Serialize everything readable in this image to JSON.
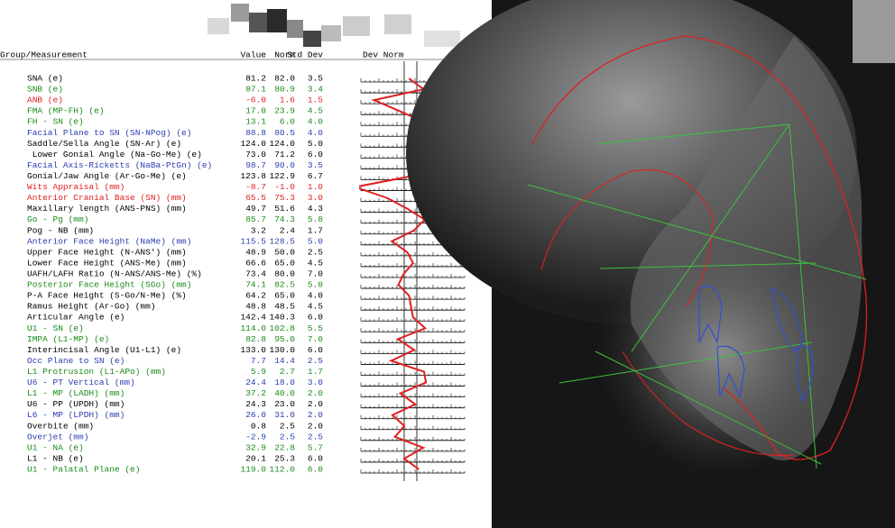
{
  "header": {
    "columns": [
      "Group/Measurement",
      "Value",
      "Norm",
      "Std Dev",
      "Dev Norm"
    ]
  },
  "table": {
    "rows": [
      {
        "name": "SNA (e)",
        "value": "81.2",
        "norm": "82.0",
        "std": "3.5",
        "color": "#000000"
      },
      {
        "name": "SNB (e)",
        "value": "87.1",
        "norm": "80.9",
        "std": "3.4",
        "color": "#1a8a1a"
      },
      {
        "name": "ANB (e)",
        "value": "-6.0",
        "norm": "1.6",
        "std": "1.5",
        "color": "#e02020"
      },
      {
        "name": "FMA (MP-FH) (e)",
        "value": "17.0",
        "norm": "23.9",
        "std": "4.5",
        "color": "#1a8a1a"
      },
      {
        "name": "FH - SN (e)",
        "value": "13.1",
        "norm": "6.0",
        "std": "4.0",
        "color": "#1a8a1a"
      },
      {
        "name": "Facial Plane to SN (SN-NPog) (e)",
        "value": "88.8",
        "norm": "80.5",
        "std": "4.0",
        "color": "#2a3db0"
      },
      {
        "name": "Saddle/Sella Angle (SN-Ar) (e)",
        "value": "124.0",
        "norm": "124.0",
        "std": "5.0",
        "color": "#000000"
      },
      {
        "name": " Lower Gonial Angle (Na-Go-Me) (e)",
        "value": "73.0",
        "norm": "71.2",
        "std": "6.0",
        "color": "#000000"
      },
      {
        "name": "Facial Axis-Ricketts (NaBa-PtGn) (e)",
        "value": "98.7",
        "norm": "90.0",
        "std": "3.5",
        "color": "#2a3db0"
      },
      {
        "name": "Gonial/Jaw Angle (Ar-Go-Me) (e)",
        "value": "123.8",
        "norm": "122.9",
        "std": "6.7",
        "color": "#000000"
      },
      {
        "name": "Wits Appraisal (mm)",
        "value": "-8.7",
        "norm": "-1.0",
        "std": "1.0",
        "color": "#e02020"
      },
      {
        "name": "Anterior Cranial Base (SN) (mm)",
        "value": "65.5",
        "norm": "75.3",
        "std": "3.0",
        "color": "#e02020"
      },
      {
        "name": "Maxillary length (ANS-PNS) (mm)",
        "value": "49.7",
        "norm": "51.6",
        "std": "4.3",
        "color": "#000000"
      },
      {
        "name": "Go - Pg (mm)",
        "value": "85.7",
        "norm": "74.3",
        "std": "5.8",
        "color": "#1a8a1a"
      },
      {
        "name": "Pog - NB (mm)",
        "value": "3.2",
        "norm": "2.4",
        "std": "1.7",
        "color": "#000000"
      },
      {
        "name": "Anterior Face Height (NaMe) (mm)",
        "value": "115.5",
        "norm": "128.5",
        "std": "5.0",
        "color": "#2a3db0"
      },
      {
        "name": "Upper Face Height (N-ANS') (mm)",
        "value": "48.9",
        "norm": "50.0",
        "std": "2.5",
        "color": "#000000"
      },
      {
        "name": "Lower Face Height (ANS-Me) (mm)",
        "value": "66.6",
        "norm": "65.0",
        "std": "4.5",
        "color": "#000000"
      },
      {
        "name": "UAFH/LAFH Ratio (N-ANS/ANS-Me) (%)",
        "value": "73.4",
        "norm": "80.0",
        "std": "7.0",
        "color": "#000000"
      },
      {
        "name": "Posterior Face Height (SGo) (mm)",
        "value": "74.1",
        "norm": "82.5",
        "std": "5.0",
        "color": "#1a8a1a"
      },
      {
        "name": "P-A Face Height (S-Go/N-Me) (%)",
        "value": "64.2",
        "norm": "65.0",
        "std": "4.0",
        "color": "#000000"
      },
      {
        "name": "Ramus Height (Ar-Go) (mm)",
        "value": "48.8",
        "norm": "48.5",
        "std": "4.5",
        "color": "#000000"
      },
      {
        "name": "Articular Angle (e)",
        "value": "142.4",
        "norm": "140.3",
        "std": "6.0",
        "color": "#000000"
      },
      {
        "name": "U1 - SN (e)",
        "value": "114.0",
        "norm": "102.8",
        "std": "5.5",
        "color": "#1a8a1a"
      },
      {
        "name": "IMPA (L1-MP) (e)",
        "value": "82.8",
        "norm": "95.0",
        "std": "7.0",
        "color": "#1a8a1a"
      },
      {
        "name": "Interincisal Angle (U1-L1) (e)",
        "value": "133.0",
        "norm": "130.0",
        "std": "6.0",
        "color": "#000000"
      },
      {
        "name": "Occ Plane to SN (e)",
        "value": "7.7",
        "norm": "14.4",
        "std": "2.5",
        "color": "#2a3db0"
      },
      {
        "name": "L1 Protrusion (L1-APo) (mm)",
        "value": "5.9",
        "norm": "2.7",
        "std": "1.7",
        "color": "#1a8a1a"
      },
      {
        "name": "U6 - PT Vertical (mm)",
        "value": "24.4",
        "norm": "18.0",
        "std": "3.0",
        "color": "#2a3db0"
      },
      {
        "name": "L1 - MP (LADH) (mm)",
        "value": "37.2",
        "norm": "40.0",
        "std": "2.0",
        "color": "#1a8a1a"
      },
      {
        "name": "U6 - PP (UPDH) (mm)",
        "value": "24.3",
        "norm": "23.0",
        "std": "2.0",
        "color": "#000000"
      },
      {
        "name": "L6 - MP (LPDH) (mm)",
        "value": "26.0",
        "norm": "31.0",
        "std": "2.0",
        "color": "#2a3db0"
      },
      {
        "name": "Overbite (mm)",
        "value": "0.8",
        "norm": "2.5",
        "std": "2.0",
        "color": "#000000"
      },
      {
        "name": "Overjet (mm)",
        "value": "-2.9",
        "norm": "2.5",
        "std": "2.5",
        "color": "#2a3db0"
      },
      {
        "name": "U1 - NA (e)",
        "value": "32.9",
        "norm": "22.8",
        "std": "5.7",
        "color": "#1a8a1a"
      },
      {
        "name": "L1 - NB (e)",
        "value": "20.1",
        "norm": "25.3",
        "std": "6.0",
        "color": "#000000"
      },
      {
        "name": "U1 - Palatal Plane (e)",
        "value": "119.0",
        "norm": "112.0",
        "std": "6.0",
        "color": "#1a8a1a"
      }
    ]
  }
}
